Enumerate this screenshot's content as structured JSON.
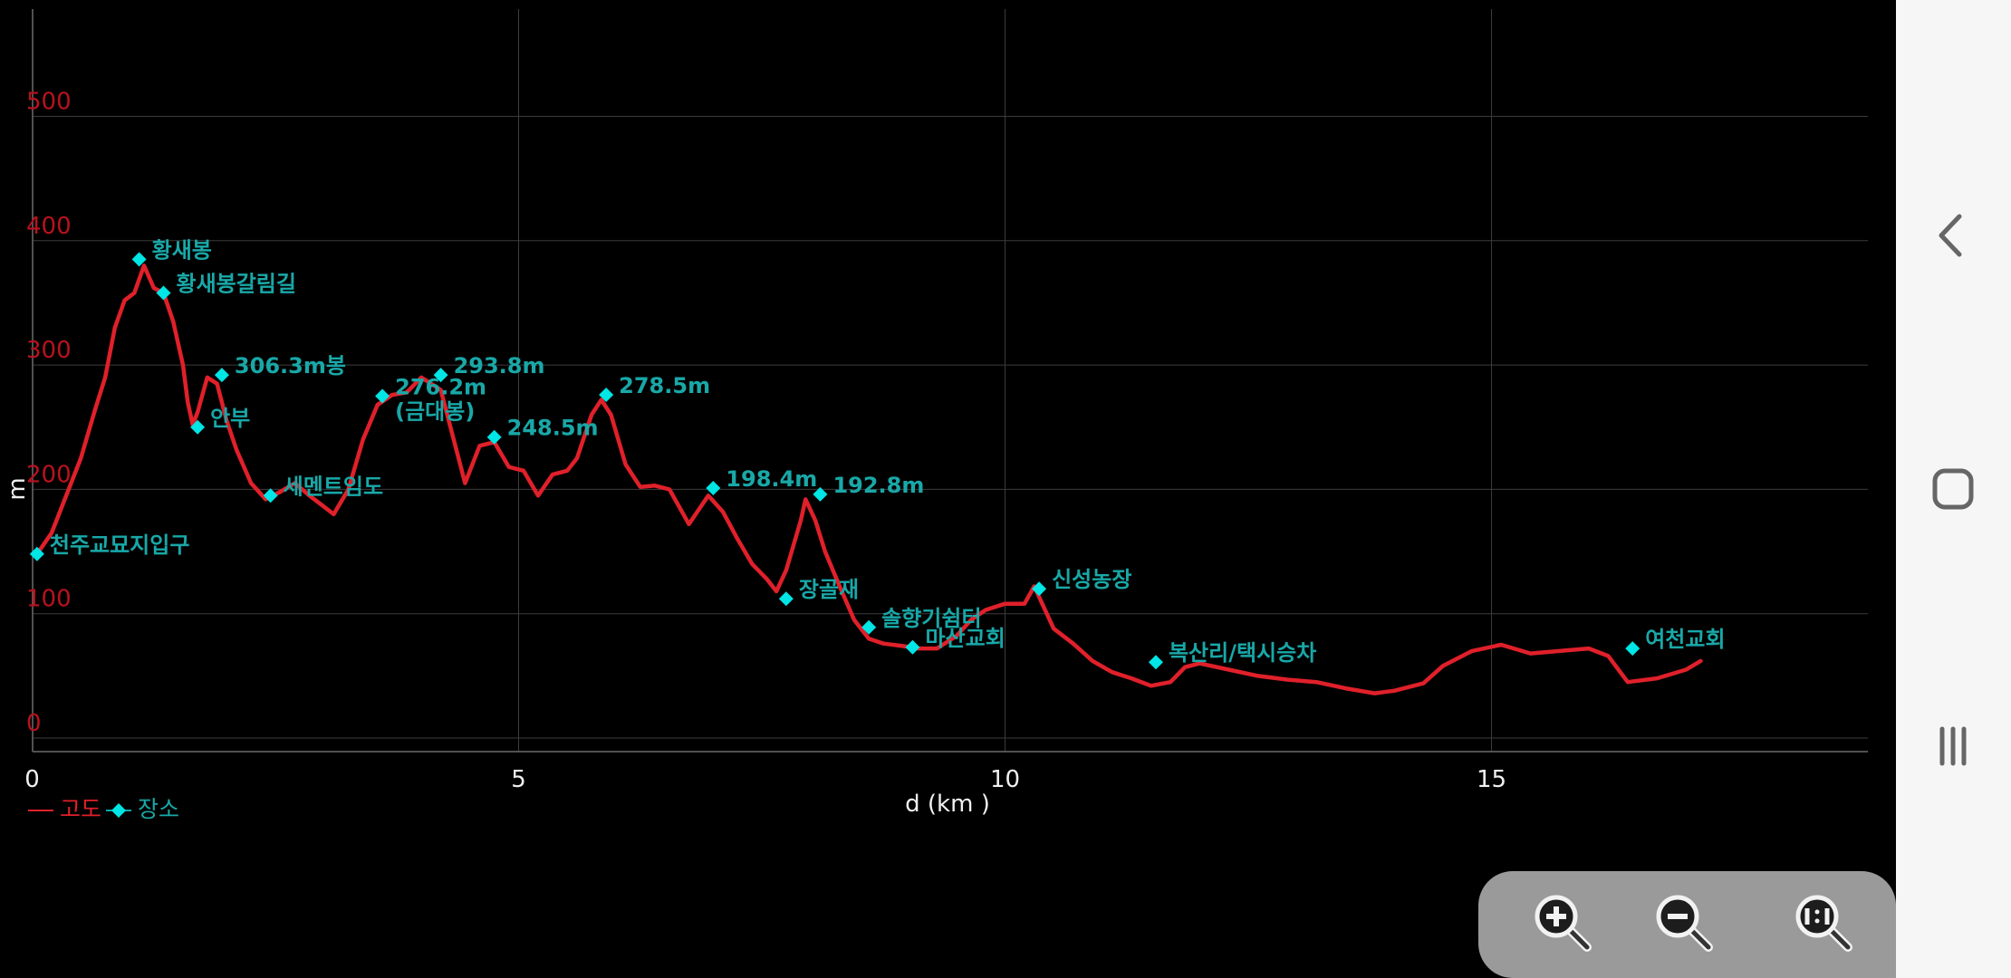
{
  "chart_data": {
    "type": "line",
    "xlabel": "d (km )",
    "ylabel": "m",
    "xlim": [
      0,
      19
    ],
    "ylim": [
      -10,
      590
    ],
    "x_ticks": [
      0,
      5,
      10,
      15
    ],
    "y_ticks": [
      0,
      100,
      200,
      300,
      400,
      500
    ],
    "grid": true,
    "legend": {
      "position": "bottom-left",
      "entries": [
        {
          "name": "고도",
          "color": "#e0202a",
          "marker": "line"
        },
        {
          "name": "장소",
          "color": "#00e5e5",
          "marker": "diamond"
        }
      ]
    },
    "series": [
      {
        "name": "고도",
        "color": "#e0202a",
        "points": [
          [
            0.05,
            148
          ],
          [
            0.2,
            165
          ],
          [
            0.35,
            195
          ],
          [
            0.5,
            225
          ],
          [
            0.65,
            265
          ],
          [
            0.75,
            290
          ],
          [
            0.85,
            330
          ],
          [
            0.95,
            352
          ],
          [
            1.05,
            358
          ],
          [
            1.15,
            380
          ],
          [
            1.25,
            362
          ],
          [
            1.35,
            358
          ],
          [
            1.45,
            335
          ],
          [
            1.55,
            300
          ],
          [
            1.6,
            270
          ],
          [
            1.65,
            252
          ],
          [
            1.7,
            262
          ],
          [
            1.8,
            290
          ],
          [
            1.9,
            285
          ],
          [
            2.0,
            255
          ],
          [
            2.1,
            232
          ],
          [
            2.25,
            205
          ],
          [
            2.4,
            192
          ],
          [
            2.55,
            198
          ],
          [
            2.7,
            205
          ],
          [
            2.85,
            195
          ],
          [
            3.0,
            186
          ],
          [
            3.1,
            180
          ],
          [
            3.25,
            200
          ],
          [
            3.4,
            240
          ],
          [
            3.55,
            268
          ],
          [
            3.7,
            276
          ],
          [
            3.85,
            278
          ],
          [
            4.0,
            290
          ],
          [
            4.2,
            280
          ],
          [
            4.3,
            250
          ],
          [
            4.45,
            205
          ],
          [
            4.6,
            235
          ],
          [
            4.75,
            238
          ],
          [
            4.9,
            218
          ],
          [
            5.05,
            215
          ],
          [
            5.2,
            195
          ],
          [
            5.35,
            212
          ],
          [
            5.5,
            215
          ],
          [
            5.6,
            225
          ],
          [
            5.75,
            260
          ],
          [
            5.85,
            272
          ],
          [
            5.95,
            260
          ],
          [
            6.1,
            220
          ],
          [
            6.25,
            202
          ],
          [
            6.4,
            203
          ],
          [
            6.55,
            200
          ],
          [
            6.75,
            172
          ],
          [
            6.95,
            195
          ],
          [
            7.1,
            182
          ],
          [
            7.25,
            160
          ],
          [
            7.4,
            140
          ],
          [
            7.55,
            128
          ],
          [
            7.65,
            118
          ],
          [
            7.75,
            135
          ],
          [
            7.9,
            175
          ],
          [
            7.95,
            192
          ],
          [
            8.05,
            175
          ],
          [
            8.15,
            150
          ],
          [
            8.3,
            122
          ],
          [
            8.45,
            95
          ],
          [
            8.6,
            80
          ],
          [
            8.75,
            76
          ],
          [
            8.95,
            74
          ],
          [
            9.1,
            72
          ],
          [
            9.3,
            72
          ],
          [
            9.5,
            82
          ],
          [
            9.65,
            95
          ],
          [
            9.8,
            103
          ],
          [
            10.0,
            108
          ],
          [
            10.2,
            108
          ],
          [
            10.3,
            122
          ],
          [
            10.5,
            88
          ],
          [
            10.7,
            76
          ],
          [
            10.9,
            62
          ],
          [
            11.1,
            53
          ],
          [
            11.3,
            48
          ],
          [
            11.5,
            42
          ],
          [
            11.7,
            45
          ],
          [
            11.85,
            57
          ],
          [
            12.0,
            60
          ],
          [
            12.3,
            55
          ],
          [
            12.6,
            50
          ],
          [
            12.9,
            47
          ],
          [
            13.2,
            45
          ],
          [
            13.5,
            40
          ],
          [
            13.8,
            36
          ],
          [
            14.0,
            38
          ],
          [
            14.3,
            44
          ],
          [
            14.5,
            58
          ],
          [
            14.8,
            70
          ],
          [
            15.1,
            75
          ],
          [
            15.4,
            68
          ],
          [
            15.7,
            70
          ],
          [
            16.0,
            72
          ],
          [
            16.2,
            66
          ],
          [
            16.4,
            45
          ],
          [
            16.7,
            48
          ],
          [
            17.0,
            55
          ],
          [
            17.15,
            62
          ]
        ]
      },
      {
        "name": "장소",
        "color": "#00e5e5",
        "points": [
          {
            "x": 0.05,
            "y": 148,
            "label": "천주교묘지입구"
          },
          {
            "x": 1.1,
            "y": 385,
            "label": "황새봉"
          },
          {
            "x": 1.35,
            "y": 358,
            "label": "황새봉갈림길"
          },
          {
            "x": 1.7,
            "y": 250,
            "label": "안부"
          },
          {
            "x": 1.95,
            "y": 292,
            "label": "306.3m봉"
          },
          {
            "x": 2.45,
            "y": 195,
            "label": "세멘트임도"
          },
          {
            "x": 3.6,
            "y": 275,
            "label": "276.2m\n(금대봉)"
          },
          {
            "x": 4.2,
            "y": 292,
            "label": "293.8m"
          },
          {
            "x": 4.75,
            "y": 242,
            "label": "248.5m"
          },
          {
            "x": 5.9,
            "y": 276,
            "label": "278.5m"
          },
          {
            "x": 7.0,
            "y": 201,
            "label": "198.4m"
          },
          {
            "x": 7.75,
            "y": 112,
            "label": "장골재"
          },
          {
            "x": 8.1,
            "y": 196,
            "label": "192.8m"
          },
          {
            "x": 8.6,
            "y": 89,
            "label": "솔향기쉼터"
          },
          {
            "x": 9.05,
            "y": 73,
            "label": "마산교회"
          },
          {
            "x": 10.35,
            "y": 120,
            "label": "신성농장"
          },
          {
            "x": 11.55,
            "y": 61,
            "label": "복산리/택시승차"
          },
          {
            "x": 16.45,
            "y": 72,
            "label": "여천교회"
          }
        ]
      }
    ]
  },
  "controls": {
    "zoom_in_icon": "zoom-in-icon",
    "zoom_out_icon": "zoom-out-icon",
    "zoom_reset_icon": "zoom-reset-1to1-icon"
  },
  "nav_bar": {
    "back_icon": "back-chevron-icon",
    "home_icon": "home-rounded-square-icon",
    "recents_icon": "recents-bars-icon"
  }
}
